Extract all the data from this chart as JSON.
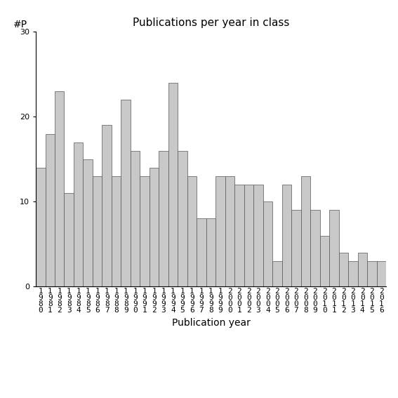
{
  "title": "Publications per year in class",
  "xlabel": "Publication year",
  "ylabel": "#P",
  "years": [
    "1980",
    "1981",
    "1982",
    "1983",
    "1984",
    "1985",
    "1986",
    "1987",
    "1988",
    "1989",
    "1990",
    "1991",
    "1992",
    "1993",
    "1994",
    "1995",
    "1996",
    "1997",
    "1998",
    "1999",
    "2000",
    "2001",
    "2002",
    "2003",
    "2004",
    "2005",
    "2006",
    "2007",
    "2008",
    "2009",
    "2010",
    "2011",
    "2012",
    "2013",
    "2014",
    "2015",
    "2016"
  ],
  "values": [
    14,
    18,
    23,
    11,
    17,
    15,
    13,
    19,
    13,
    22,
    16,
    13,
    14,
    16,
    24,
    16,
    13,
    8,
    8,
    13,
    13,
    12,
    12,
    12,
    10,
    3,
    12,
    9,
    13,
    9,
    6,
    9,
    4,
    3,
    4,
    3,
    3
  ],
  "bar_color": "#c8c8c8",
  "bar_edge_color": "#555555",
  "ylim": [
    0,
    30
  ],
  "yticks": [
    0,
    10,
    20,
    30
  ],
  "background_color": "#ffffff",
  "fig_width": 5.67,
  "fig_height": 5.67,
  "dpi": 100,
  "title_fontsize": 11,
  "axis_label_fontsize": 10,
  "tick_fontsize": 8
}
